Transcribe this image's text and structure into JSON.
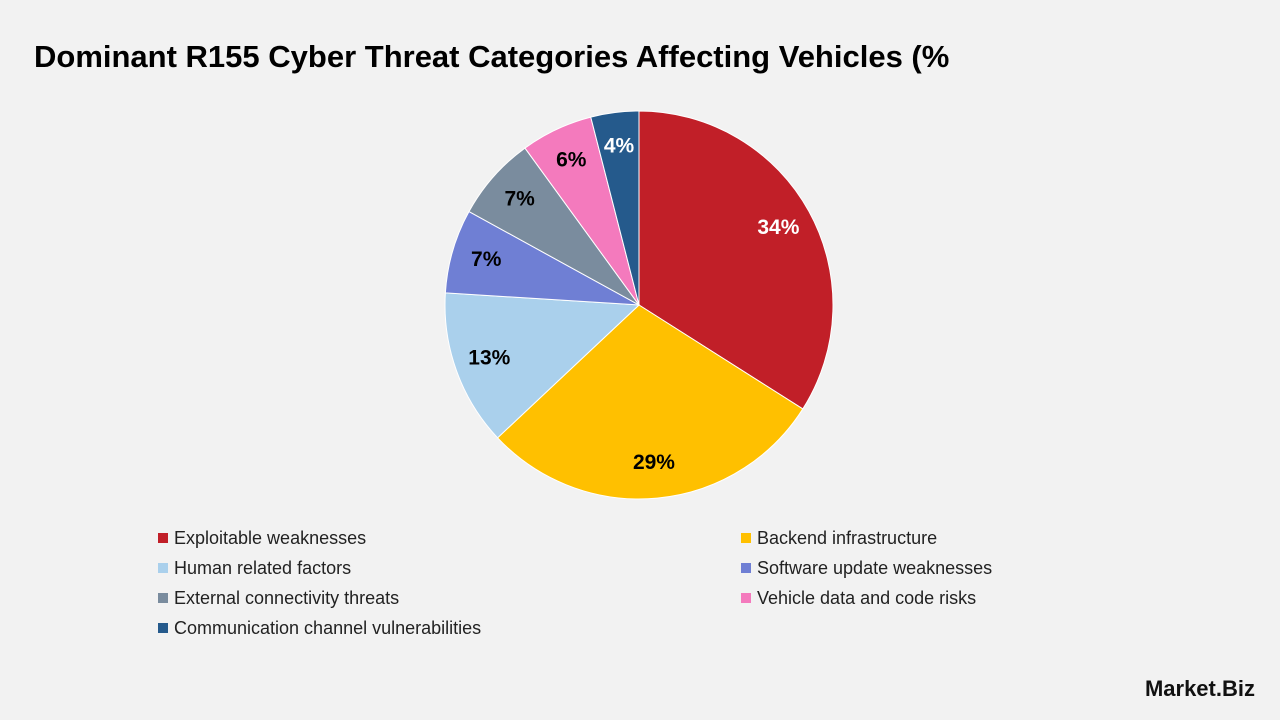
{
  "chart_data": {
    "type": "pie",
    "title": "Dominant R155 Cyber Threat Categories Affecting Vehicles (%",
    "categories": [
      "Exploitable weaknesses",
      "Backend infrastructure",
      "Human related factors",
      "Software update weaknesses",
      "External connectivity threats",
      "Vehicle data and code risks",
      "Communication channel vulnerabilities"
    ],
    "values": [
      34,
      29,
      13,
      7,
      7,
      6,
      4
    ],
    "value_labels": [
      "34%",
      "29%",
      "13%",
      "7%",
      "7%",
      "6%",
      "4%"
    ],
    "colors": [
      "#c11f28",
      "#ffc000",
      "#aad0ec",
      "#6f7fd4",
      "#7a8c9e",
      "#f47abd",
      "#255a8c"
    ],
    "legend": "bottom"
  },
  "brand": "Market.Biz"
}
